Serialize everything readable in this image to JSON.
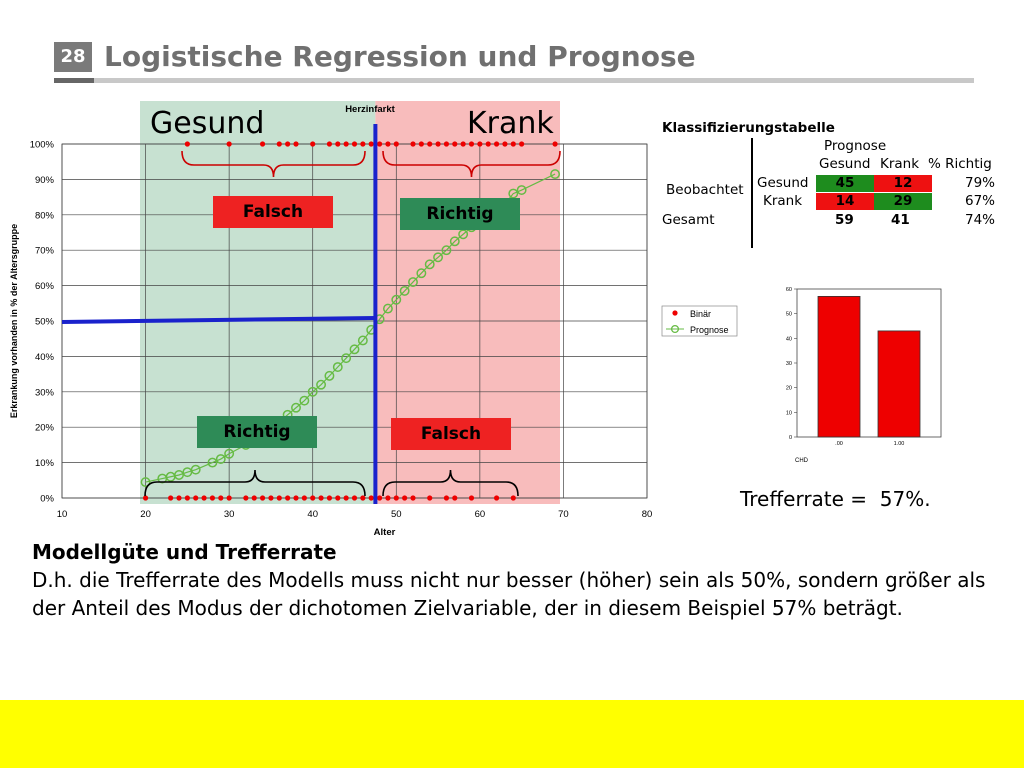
{
  "slide": {
    "number": "28",
    "title": "Logistische Regression und Prognose"
  },
  "main_chart": {
    "region_left": "Gesund",
    "region_right": "Krank",
    "top_label": "Herzinfarkt",
    "tag_top_left": "Falsch",
    "tag_top_right": "Richtig",
    "tag_bottom_left": "Richtig",
    "tag_bottom_right": "Falsch"
  },
  "legend": {
    "binary": "Binär",
    "forecast": "Prognose"
  },
  "classification_table": {
    "caption": "Klassifizierungstabelle",
    "prognose": "Prognose",
    "col_gesund": "Gesund",
    "col_krank": "Krank",
    "col_pct": "% Richtig",
    "row_group": "Beobachtet",
    "rows": [
      {
        "label": "Gesund",
        "gesund": "45",
        "krank": "12",
        "pct": "79%"
      },
      {
        "label": "Krank",
        "gesund": "14",
        "krank": "29",
        "pct": "67%"
      }
    ],
    "total": {
      "label": "Gesamt",
      "gesund": "59",
      "krank": "41",
      "pct": "74%"
    }
  },
  "trefferrate": "Trefferrate =  57%.",
  "body": {
    "heading": "Modellgüte und Trefferrate",
    "text": "D.h. die Trefferrate des Modells muss nicht nur besser (höher) sein als 50%, sondern größer als der Anteil des Modus der dichotomen Zielvariable, der in diesem Beispiel 57% beträgt."
  },
  "chart_data": [
    {
      "type": "scatter",
      "xlabel": "Alter",
      "ylabel": "Erkrankung vorhanden in % der Altersgruppe",
      "xlim": [
        10,
        80
      ],
      "ylim": [
        0,
        100
      ],
      "x_ticks": [
        "10",
        "20",
        "30",
        "40",
        "50",
        "60",
        "70",
        "80"
      ],
      "y_ticks": [
        "0%",
        "10%",
        "20%",
        "30%",
        "40%",
        "50%",
        "60%",
        "70%",
        "80%",
        "90%",
        "100%"
      ],
      "threshold_age": 47.5,
      "threshold_prob": 50,
      "series": [
        {
          "name": "Binär",
          "color": "#ee0000",
          "points": [
            [
              20,
              0
            ],
            [
              23,
              0
            ],
            [
              24,
              0
            ],
            [
              25,
              0
            ],
            [
              26,
              0
            ],
            [
              27,
              0
            ],
            [
              28,
              0
            ],
            [
              29,
              0
            ],
            [
              30,
              0
            ],
            [
              32,
              0
            ],
            [
              33,
              0
            ],
            [
              34,
              0
            ],
            [
              35,
              0
            ],
            [
              36,
              0
            ],
            [
              37,
              0
            ],
            [
              38,
              0
            ],
            [
              39,
              0
            ],
            [
              40,
              0
            ],
            [
              41,
              0
            ],
            [
              42,
              0
            ],
            [
              43,
              0
            ],
            [
              44,
              0
            ],
            [
              45,
              0
            ],
            [
              46,
              0
            ],
            [
              47,
              0
            ],
            [
              48,
              0
            ],
            [
              49,
              0
            ],
            [
              50,
              0
            ],
            [
              51,
              0
            ],
            [
              52,
              0
            ],
            [
              54,
              0
            ],
            [
              56,
              0
            ],
            [
              57,
              0
            ],
            [
              59,
              0
            ],
            [
              62,
              0
            ],
            [
              64,
              0
            ],
            [
              25,
              100
            ],
            [
              30,
              100
            ],
            [
              34,
              100
            ],
            [
              36,
              100
            ],
            [
              37,
              100
            ],
            [
              38,
              100
            ],
            [
              40,
              100
            ],
            [
              42,
              100
            ],
            [
              43,
              100
            ],
            [
              44,
              100
            ],
            [
              45,
              100
            ],
            [
              46,
              100
            ],
            [
              47,
              100
            ],
            [
              48,
              100
            ],
            [
              49,
              100
            ],
            [
              50,
              100
            ],
            [
              52,
              100
            ],
            [
              53,
              100
            ],
            [
              54,
              100
            ],
            [
              55,
              100
            ],
            [
              56,
              100
            ],
            [
              57,
              100
            ],
            [
              58,
              100
            ],
            [
              59,
              100
            ],
            [
              60,
              100
            ],
            [
              61,
              100
            ],
            [
              62,
              100
            ],
            [
              63,
              100
            ],
            [
              64,
              100
            ],
            [
              65,
              100
            ],
            [
              69,
              100
            ]
          ]
        },
        {
          "name": "Prognose",
          "color": "#66bb44",
          "points": [
            [
              20,
              4.5
            ],
            [
              22,
              5.5
            ],
            [
              23,
              6
            ],
            [
              24,
              6.5
            ],
            [
              25,
              7.3
            ],
            [
              26,
              8
            ],
            [
              28,
              10
            ],
            [
              29,
              11
            ],
            [
              30,
              12.5
            ],
            [
              32,
              15
            ],
            [
              33,
              16.5
            ],
            [
              34,
              18
            ],
            [
              35,
              19.5
            ],
            [
              36,
              21.5
            ],
            [
              37,
              23.5
            ],
            [
              38,
              25.5
            ],
            [
              39,
              27.5
            ],
            [
              40,
              30
            ],
            [
              41,
              32
            ],
            [
              42,
              34.5
            ],
            [
              43,
              37
            ],
            [
              44,
              39.5
            ],
            [
              45,
              42
            ],
            [
              46,
              44.5
            ],
            [
              47,
              47.5
            ],
            [
              48,
              50.5
            ],
            [
              49,
              53.5
            ],
            [
              50,
              56
            ],
            [
              51,
              58.5
            ],
            [
              52,
              61
            ],
            [
              53,
              63.5
            ],
            [
              54,
              66
            ],
            [
              55,
              68
            ],
            [
              56,
              70
            ],
            [
              57,
              72.5
            ],
            [
              58,
              74.5
            ],
            [
              59,
              76.5
            ],
            [
              60,
              78
            ],
            [
              61,
              80
            ],
            [
              62,
              81.5
            ],
            [
              63,
              83
            ],
            [
              64,
              86
            ],
            [
              65,
              87
            ],
            [
              69,
              91.5
            ]
          ]
        }
      ]
    },
    {
      "type": "bar",
      "categories": [
        ".00",
        "1.00"
      ],
      "values": [
        57,
        43
      ],
      "xlabel": "CHD",
      "ylim": [
        0,
        60
      ],
      "y_ticks": [
        "0",
        "10",
        "20",
        "30",
        "40",
        "50",
        "60"
      ],
      "color": "#ee0000"
    }
  ]
}
